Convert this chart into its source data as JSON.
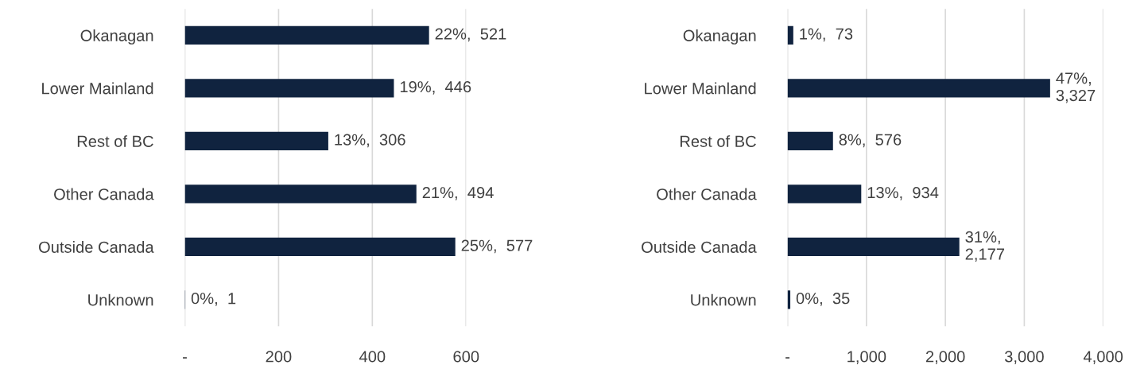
{
  "chart_data": [
    {
      "type": "bar",
      "orientation": "horizontal",
      "categories": [
        "Okanagan",
        "Lower Mainland",
        "Rest of BC",
        "Other Canada",
        "Outside Canada",
        "Unknown"
      ],
      "values": [
        521,
        446,
        306,
        494,
        577,
        1
      ],
      "color": "#10233f",
      "value_labels": [
        "22%,  521",
        "19%,  446",
        "13%,  306",
        "21%,  494",
        "25%,  577",
        "0%,  1"
      ],
      "xlim": [
        0,
        600
      ],
      "xticks": [
        {
          "value": 0,
          "label": "-"
        },
        200,
        400,
        600
      ],
      "grid": "x",
      "legend": false
    },
    {
      "type": "bar",
      "orientation": "horizontal",
      "categories": [
        "Okanagan",
        "Lower Mainland",
        "Rest of BC",
        "Other Canada",
        "Outside Canada",
        "Unknown"
      ],
      "values": [
        73,
        3327,
        576,
        934,
        2177,
        35
      ],
      "color": "#10233f",
      "value_labels": [
        "1%,  73",
        "47%,\n3,327",
        "8%,  576",
        "13%,  934",
        "31%,\n2,177",
        "0%,  35"
      ],
      "xlim": [
        0,
        4000
      ],
      "xticks": [
        {
          "value": 0,
          "label": "-"
        },
        {
          "value": 1000,
          "label": "1,000"
        },
        {
          "value": 2000,
          "label": "2,000"
        },
        {
          "value": 3000,
          "label": "3,000"
        },
        {
          "value": 4000,
          "label": "4,000"
        }
      ],
      "grid": "x",
      "legend": false
    }
  ]
}
